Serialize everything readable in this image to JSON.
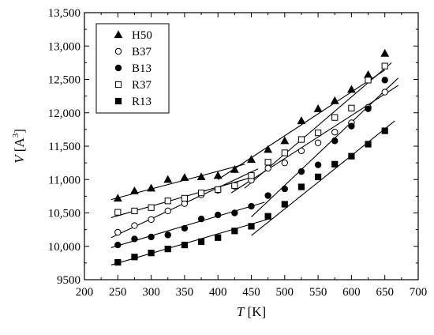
{
  "chart_data": {
    "type": "scatter",
    "xlabel": {
      "symbol": "T",
      "unit": "[K]"
    },
    "ylabel": {
      "symbol": "V",
      "unit": "[A",
      "sup": "3",
      "close": "]"
    },
    "xlim": [
      200,
      700
    ],
    "ylim": [
      9500,
      13500
    ],
    "xticks": [
      200,
      250,
      300,
      350,
      400,
      450,
      500,
      550,
      600,
      650,
      700
    ],
    "yticks": [
      9500,
      10000,
      10500,
      11000,
      11500,
      12000,
      12500,
      13000,
      13500
    ],
    "xtick_labels": [
      "200",
      "250",
      "300",
      "350",
      "400",
      "450",
      "500",
      "550",
      "600",
      "650",
      "700"
    ],
    "ytick_labels": [
      "9500",
      "10,000",
      "10,500",
      "11,000",
      "11,500",
      "12,000",
      "12,500",
      "13,000",
      "13,500"
    ],
    "legend_position": "top-left",
    "grid": false,
    "series": [
      {
        "name": "H50",
        "marker": "triangle",
        "filled": true,
        "x": [
          250,
          275,
          300,
          325,
          350,
          375,
          400,
          425,
          450,
          475,
          500,
          525,
          550,
          575,
          600,
          625,
          650
        ],
        "y": [
          10720,
          10830,
          10870,
          11000,
          11030,
          11040,
          11060,
          11150,
          11300,
          11450,
          11580,
          11880,
          12060,
          12180,
          12350,
          12570,
          12890
        ],
        "fits": [
          [
            [
              240,
              10700
            ],
            [
              440,
              11230
            ]
          ],
          [
            [
              400,
              11000
            ],
            [
              650,
              12640
            ]
          ]
        ]
      },
      {
        "name": "B37",
        "marker": "circle",
        "filled": false,
        "x": [
          250,
          275,
          300,
          325,
          350,
          375,
          400,
          425,
          450,
          475,
          500,
          525,
          550,
          575,
          600,
          625,
          650
        ],
        "y": [
          10210,
          10310,
          10400,
          10530,
          10640,
          10770,
          10840,
          10900,
          10990,
          11170,
          11250,
          11430,
          11550,
          11710,
          11850,
          12080,
          12310
        ],
        "fits": [
          [
            [
              240,
              10130
            ],
            [
              460,
              11160
            ]
          ],
          [
            [
              420,
              10800
            ],
            [
              670,
              12410
            ]
          ]
        ]
      },
      {
        "name": "B13",
        "marker": "circle",
        "filled": true,
        "x": [
          250,
          275,
          300,
          325,
          350,
          375,
          400,
          425,
          450,
          475,
          500,
          525,
          550,
          575,
          600,
          625,
          650
        ],
        "y": [
          10020,
          10110,
          10140,
          10170,
          10270,
          10410,
          10470,
          10500,
          10600,
          10760,
          10860,
          11120,
          11220,
          11580,
          11800,
          12060,
          12490
        ],
        "fits": [
          [
            [
              240,
              9980
            ],
            [
              470,
              10660
            ]
          ],
          [
            [
              450,
              10440
            ],
            [
              670,
              12520
            ]
          ]
        ]
      },
      {
        "name": "R37",
        "marker": "square",
        "filled": false,
        "x": [
          250,
          275,
          300,
          325,
          350,
          375,
          400,
          425,
          450,
          475,
          500,
          525,
          550,
          575,
          600,
          625,
          650
        ],
        "y": [
          10510,
          10530,
          10580,
          10680,
          10720,
          10800,
          10850,
          10910,
          11060,
          11260,
          11400,
          11600,
          11700,
          11930,
          12070,
          12490,
          12700
        ],
        "fits": [
          [
            [
              240,
              10430
            ],
            [
              450,
              11030
            ]
          ],
          [
            [
              440,
              10870
            ],
            [
              660,
              12750
            ]
          ]
        ]
      },
      {
        "name": "R13",
        "marker": "square",
        "filled": true,
        "x": [
          250,
          275,
          300,
          325,
          350,
          375,
          400,
          425,
          450,
          475,
          500,
          525,
          550,
          575,
          600,
          625,
          650
        ],
        "y": [
          9760,
          9840,
          9900,
          9960,
          10020,
          10070,
          10130,
          10230,
          10300,
          10450,
          10630,
          10890,
          11040,
          11230,
          11350,
          11530,
          11730
        ],
        "fits": [
          [
            [
              240,
              9720
            ],
            [
              480,
              10420
            ]
          ],
          [
            [
              450,
              10160
            ],
            [
              665,
              11880
            ]
          ]
        ]
      }
    ]
  }
}
